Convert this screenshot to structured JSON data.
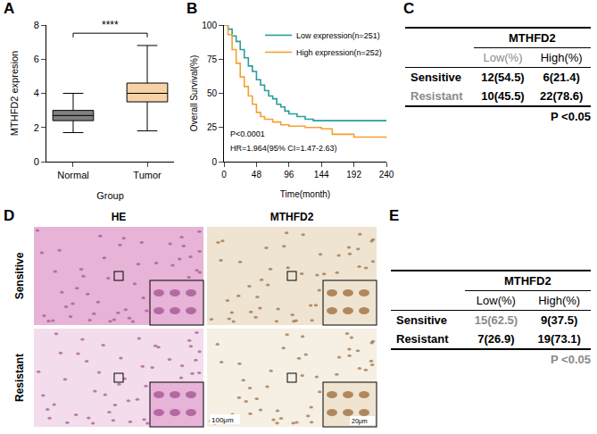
{
  "chart_data": [
    {
      "panel": "A",
      "type": "box",
      "x_label": "Group",
      "y_label": "MTHFD2 expresion",
      "categories": [
        "Normal",
        "Tumor"
      ],
      "series": [
        {
          "name": "Normal",
          "color": "#7f7f7f",
          "min": 1.7,
          "q1": 2.4,
          "median": 2.7,
          "q3": 3.0,
          "max": 4.0
        },
        {
          "name": "Tumor",
          "color": "#f6d2a6",
          "min": 1.8,
          "q1": 3.5,
          "median": 4.0,
          "q3": 4.6,
          "max": 6.8
        }
      ],
      "annotations": [
        "****"
      ],
      "ylim": [
        0,
        8
      ],
      "yticks": [
        0,
        2,
        4,
        6,
        8
      ],
      "grid": false
    },
    {
      "panel": "B",
      "type": "line",
      "x_label": "Time(month)",
      "y_label": "Overall Survival(%)",
      "line_style": "step",
      "series": [
        {
          "name": "Low expression(n=251)",
          "color": "#2a9d9a",
          "x": [
            0,
            6,
            12,
            18,
            24,
            30,
            36,
            42,
            48,
            54,
            60,
            66,
            72,
            78,
            84,
            90,
            96,
            108,
            120,
            132,
            144,
            192,
            240
          ],
          "values": [
            100,
            97,
            92,
            88,
            82,
            76,
            70,
            66,
            60,
            56,
            52,
            48,
            46,
            42,
            40,
            37,
            35,
            33,
            31,
            30,
            30,
            30,
            30
          ]
        },
        {
          "name": "High expression(n=252)",
          "color": "#f5a030",
          "x": [
            0,
            6,
            12,
            18,
            24,
            30,
            36,
            42,
            48,
            54,
            60,
            72,
            84,
            96,
            120,
            144,
            160,
            192,
            220,
            240
          ],
          "values": [
            100,
            93,
            82,
            72,
            62,
            55,
            48,
            42,
            36,
            33,
            31,
            29,
            27,
            26,
            25,
            24,
            20,
            18,
            18,
            17
          ]
        }
      ],
      "annotations": [
        "P<0.0001",
        "HR=1.964(95% CI=1.47-2.63)"
      ],
      "xlim": [
        0,
        240
      ],
      "xticks": [
        0,
        48,
        96,
        144,
        192,
        240
      ],
      "ylim": [
        0,
        100
      ],
      "yticks": [
        0,
        25,
        50,
        75,
        100
      ],
      "legend": "top-right",
      "grid": false
    }
  ],
  "tables": [
    {
      "panel": "C",
      "header": "MTHFD2",
      "columns": [
        "Low(%)",
        "High(%)"
      ],
      "rows": [
        [
          "Sensitive",
          "12(54.5)",
          "6(21.4)"
        ],
        [
          "Resistant",
          "10(45.5)",
          "22(78.6)"
        ]
      ],
      "p_value": "P <0.05"
    },
    {
      "panel": "E",
      "header": "MTHFD2",
      "columns": [
        "Low(%)",
        "High(%)"
      ],
      "rows": [
        [
          "Sensitive",
          "15(62.5)",
          "9(37.5)"
        ],
        [
          "Resistant",
          "7(26.9)",
          "19(73.1)"
        ]
      ],
      "p_value": "P <0.05"
    }
  ],
  "images": {
    "panel": "D",
    "columns": [
      "HE",
      "MTHFD2"
    ],
    "rows": [
      "Sensitive",
      "Resistant"
    ],
    "scale_bars": [
      "100μm",
      "20μm"
    ]
  }
}
